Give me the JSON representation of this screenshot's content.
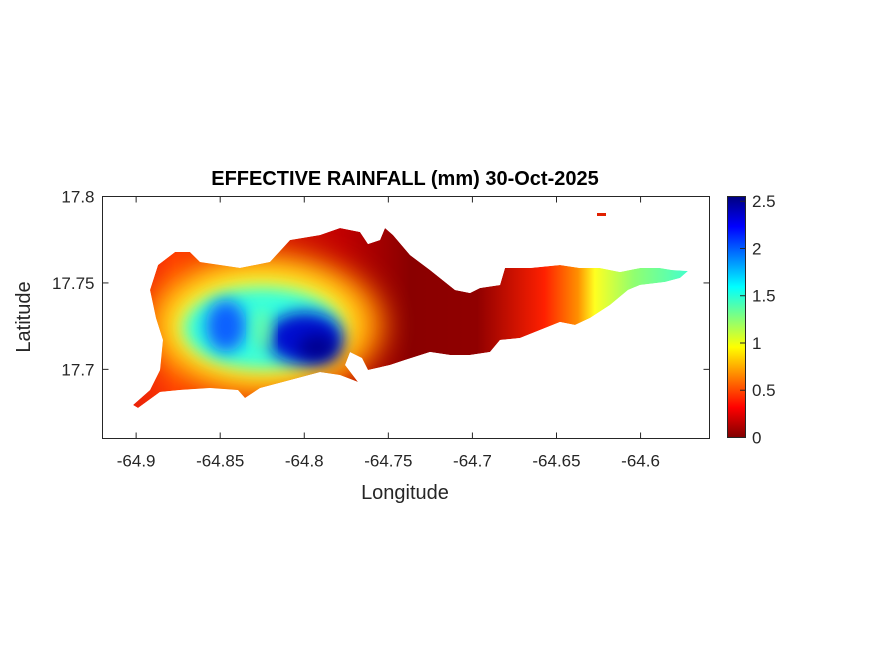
{
  "chart_data": {
    "type": "heatmap",
    "title": "EFFECTIVE RAINFALL (mm) 30-Oct-2025",
    "xlabel": "Longitude",
    "ylabel": "Latitude",
    "xlim": [
      -64.92,
      -64.559
    ],
    "ylim": [
      17.66,
      17.8
    ],
    "xticks": [
      -64.9,
      -64.85,
      -64.8,
      -64.75,
      -64.7,
      -64.65,
      -64.6
    ],
    "xtick_labels": [
      "-64.9",
      "-64.85",
      "-64.8",
      "-64.75",
      "-64.7",
      "-64.65",
      "-64.6"
    ],
    "yticks": [
      17.7,
      17.75,
      17.8
    ],
    "ytick_labels": [
      "17.7",
      "17.75",
      "17.8"
    ],
    "colorbar": {
      "colormap": "jet",
      "clim": [
        0,
        2.55
      ],
      "ticks": [
        0,
        0.5,
        1,
        1.5,
        2,
        2.5
      ],
      "tick_labels": [
        "0",
        "0.5",
        "1",
        "1.5",
        "2",
        "2.5"
      ]
    },
    "features": [
      {
        "lon": -64.843,
        "lat": 17.722,
        "value": 2.1
      },
      {
        "lon": -64.795,
        "lat": 17.713,
        "value": 2.55
      },
      {
        "lon": -64.72,
        "lat": 17.74,
        "value": 0.0
      },
      {
        "lon": -64.58,
        "lat": 17.752,
        "value": 1.4
      }
    ],
    "grid": false
  }
}
